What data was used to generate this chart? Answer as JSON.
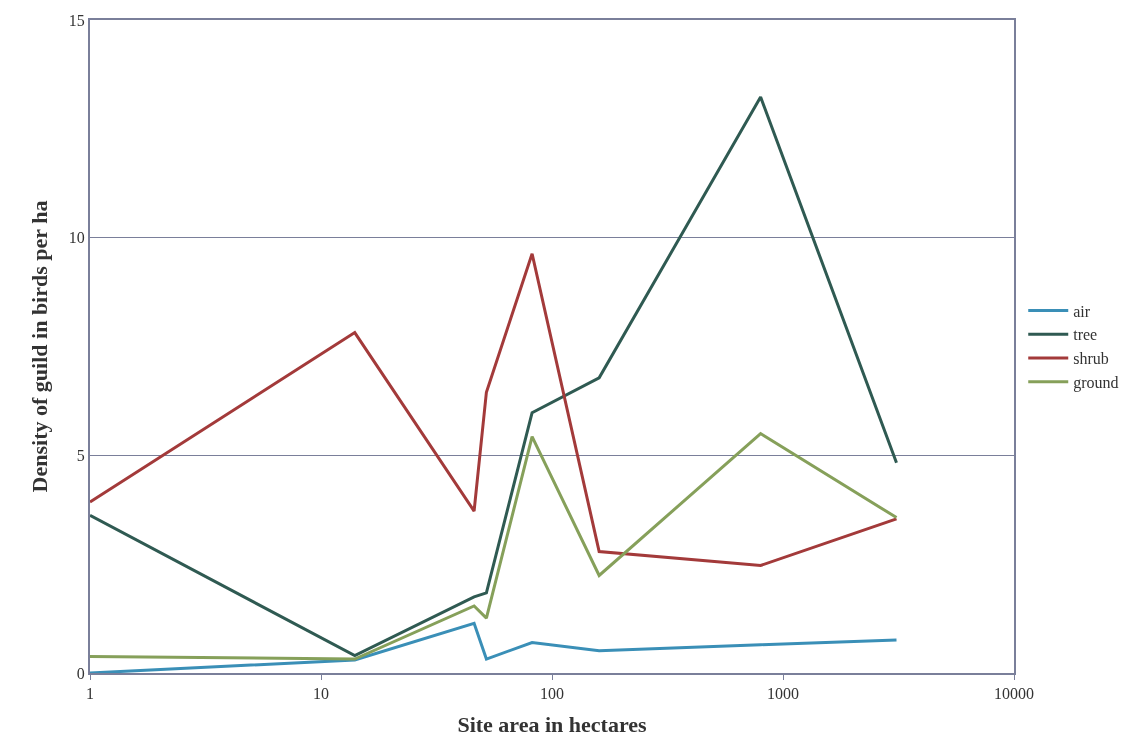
{
  "chart_data": {
    "type": "line",
    "xlabel": "Site area in hectares",
    "ylabel": "Density of guild in birds per ha",
    "x": [
      1,
      14,
      46,
      52,
      82,
      160,
      800,
      3100
    ],
    "series": [
      {
        "name": "air",
        "color": "#3a8fb7",
        "values": [
          0,
          0.3,
          1.14,
          0.32,
          0.7,
          0.51,
          0.65,
          0.76
        ]
      },
      {
        "name": "tree",
        "color": "#2f5a52",
        "values": [
          3.62,
          0.4,
          1.75,
          1.84,
          5.98,
          6.78,
          13.23,
          4.83
        ]
      },
      {
        "name": "shrub",
        "color": "#a33a3a",
        "values": [
          3.93,
          7.82,
          3.72,
          6.45,
          9.63,
          2.79,
          2.47,
          3.54
        ]
      },
      {
        "name": "ground",
        "color": "#86a05a",
        "values": [
          0.38,
          0.32,
          1.54,
          1.26,
          5.43,
          2.24,
          5.5,
          3.57
        ]
      }
    ],
    "log": "x",
    "xlim": [
      1,
      10000
    ],
    "xticks": [
      1,
      10,
      100,
      1000,
      10000
    ],
    "ylim": [
      0,
      15
    ],
    "yticks": [
      0,
      5,
      10,
      15
    ],
    "grid": "y",
    "legend": "right",
    "marker": "none",
    "line_style": "solid"
  }
}
